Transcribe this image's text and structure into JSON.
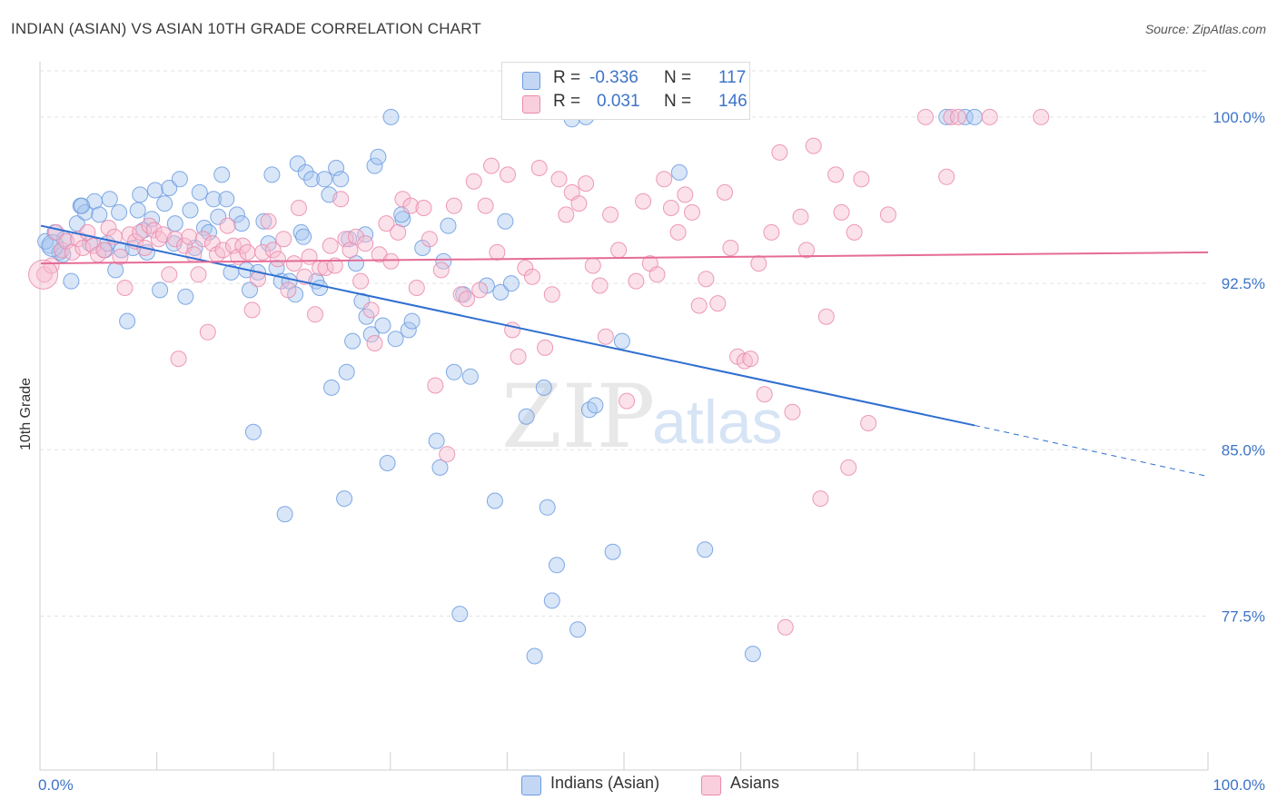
{
  "header": {
    "title": "INDIAN (ASIAN) VS ASIAN 10TH GRADE CORRELATION CHART",
    "source": "Source: ZipAtlas.com"
  },
  "stats": [
    {
      "r_label": "R =",
      "r_value": "-0.336",
      "n_label": "N =",
      "n_value": "117"
    },
    {
      "r_label": "R =",
      "r_value": "0.031",
      "n_label": "N =",
      "n_value": "146"
    }
  ],
  "legend": {
    "items": [
      "Indians (Asian)",
      "Asians"
    ]
  },
  "colors": {
    "blue_fill": "#a9c7ef",
    "blue_stroke": "#6c9be0",
    "blue_line": "#2f6fd1",
    "pink_fill": "#f6bdd0",
    "pink_stroke": "#ea8aab",
    "pink_line": "#e56b96",
    "value_text": "#3d74c8"
  },
  "chart_data": {
    "type": "scatter",
    "title": "INDIAN (ASIAN) VS ASIAN 10TH GRADE CORRELATION CHART",
    "xlabel": "",
    "ylabel": "10th Grade",
    "xlim": [
      0,
      100
    ],
    "ylim": [
      71.3,
      102.0
    ],
    "x_tick_labels": [
      {
        "v": 0,
        "label": "0.0%"
      },
      {
        "v": 100,
        "label": "100.0%"
      }
    ],
    "y_tick_labels": [
      {
        "v": 100.0,
        "label": "100.0%"
      },
      {
        "v": 92.5,
        "label": "92.5%"
      },
      {
        "v": 85.0,
        "label": "85.0%"
      },
      {
        "v": 77.5,
        "label": "77.5%"
      }
    ],
    "grid": true,
    "legend_position": "bottom-center",
    "watermark": "ZIPatlas",
    "series": [
      {
        "name": "Indians (Asian)",
        "color": "#a9c7ef",
        "trend": {
          "x": [
            0,
            80
          ],
          "y": [
            95.1,
            86.1
          ],
          "dashed_to": [
            100,
            83.8
          ]
        },
        "points": [
          [
            0.8,
            94.2
          ],
          [
            1.2,
            94.8
          ],
          [
            1.6,
            93.9
          ],
          [
            2.0,
            94.5
          ],
          [
            2.6,
            92.6
          ],
          [
            3.1,
            95.2
          ],
          [
            3.4,
            96.0
          ],
          [
            3.8,
            95.7
          ],
          [
            4.2,
            94.3
          ],
          [
            4.6,
            96.2
          ],
          [
            5.0,
            95.6
          ],
          [
            5.5,
            94.0
          ],
          [
            5.9,
            96.3
          ],
          [
            6.4,
            93.1
          ],
          [
            6.9,
            94.0
          ],
          [
            7.4,
            90.8
          ],
          [
            7.9,
            94.1
          ],
          [
            8.3,
            95.8
          ],
          [
            8.8,
            94.9
          ],
          [
            9.1,
            93.9
          ],
          [
            9.5,
            95.4
          ],
          [
            9.8,
            96.7
          ],
          [
            10.2,
            92.2
          ],
          [
            10.6,
            96.1
          ],
          [
            11.0,
            96.8
          ],
          [
            11.5,
            95.2
          ],
          [
            11.9,
            97.2
          ],
          [
            12.4,
            91.9
          ],
          [
            12.8,
            95.8
          ],
          [
            13.2,
            94.1
          ],
          [
            13.6,
            96.6
          ],
          [
            14.0,
            95.0
          ],
          [
            14.4,
            94.8
          ],
          [
            14.8,
            96.3
          ],
          [
            15.2,
            95.5
          ],
          [
            15.5,
            97.4
          ],
          [
            15.9,
            96.3
          ],
          [
            16.3,
            93.0
          ],
          [
            16.8,
            95.6
          ],
          [
            17.2,
            95.2
          ],
          [
            17.6,
            93.1
          ],
          [
            17.9,
            92.2
          ],
          [
            18.2,
            85.8
          ],
          [
            18.6,
            93.0
          ],
          [
            19.1,
            95.3
          ],
          [
            19.5,
            94.3
          ],
          [
            19.8,
            97.4
          ],
          [
            20.2,
            93.2
          ],
          [
            20.6,
            92.6
          ],
          [
            20.9,
            82.1
          ],
          [
            21.3,
            92.6
          ],
          [
            21.8,
            92.0
          ],
          [
            22.0,
            97.9
          ],
          [
            22.3,
            94.8
          ],
          [
            22.7,
            97.5
          ],
          [
            23.2,
            97.2
          ],
          [
            23.6,
            92.6
          ],
          [
            23.9,
            92.3
          ],
          [
            24.3,
            97.2
          ],
          [
            24.7,
            96.5
          ],
          [
            24.9,
            87.8
          ],
          [
            25.3,
            97.7
          ],
          [
            25.7,
            97.2
          ],
          [
            26.0,
            82.8
          ],
          [
            26.2,
            88.5
          ],
          [
            26.7,
            89.9
          ],
          [
            27.0,
            93.4
          ],
          [
            27.5,
            91.7
          ],
          [
            27.9,
            91.0
          ],
          [
            28.3,
            90.2
          ],
          [
            28.6,
            97.8
          ],
          [
            28.9,
            98.2
          ],
          [
            29.3,
            90.6
          ],
          [
            29.7,
            84.4
          ],
          [
            30.0,
            100.0
          ],
          [
            30.4,
            90.0
          ],
          [
            31.0,
            95.4
          ],
          [
            31.5,
            90.4
          ],
          [
            31.8,
            90.8
          ],
          [
            32.7,
            94.1
          ],
          [
            33.9,
            85.4
          ],
          [
            34.2,
            84.2
          ],
          [
            34.5,
            93.5
          ],
          [
            34.9,
            95.1
          ],
          [
            35.4,
            88.5
          ],
          [
            35.9,
            77.6
          ],
          [
            36.2,
            92.0
          ],
          [
            36.8,
            88.3
          ],
          [
            38.2,
            92.4
          ],
          [
            38.9,
            82.7
          ],
          [
            39.4,
            92.1
          ],
          [
            39.8,
            95.3
          ],
          [
            40.3,
            92.5
          ],
          [
            41.6,
            86.5
          ],
          [
            42.3,
            75.7
          ],
          [
            43.1,
            87.8
          ],
          [
            43.4,
            82.4
          ],
          [
            43.8,
            78.2
          ],
          [
            44.2,
            79.8
          ],
          [
            45.5,
            99.9
          ],
          [
            46.0,
            76.9
          ],
          [
            46.7,
            100.0
          ],
          [
            47.0,
            86.8
          ],
          [
            47.5,
            87.0
          ],
          [
            49.0,
            80.4
          ],
          [
            49.8,
            89.9
          ],
          [
            54.7,
            97.5
          ],
          [
            56.9,
            80.5
          ],
          [
            61.0,
            75.8
          ],
          [
            77.6,
            100.0
          ],
          [
            79.2,
            100.0
          ],
          [
            80.0,
            100.0
          ],
          [
            0.4,
            94.4
          ],
          [
            1.9,
            93.8
          ],
          [
            5.7,
            94.3
          ],
          [
            11.4,
            94.3
          ],
          [
            22.5,
            94.6
          ],
          [
            26.4,
            94.5
          ],
          [
            27.8,
            94.7
          ],
          [
            30.9,
            95.6
          ],
          [
            3.5,
            96.0
          ],
          [
            6.7,
            95.7
          ],
          [
            8.5,
            96.5
          ]
        ]
      },
      {
        "name": "Asians",
        "color": "#f6bdd0",
        "trend": {
          "x": [
            0,
            100
          ],
          "y": [
            93.4,
            93.9
          ]
        },
        "points": [
          [
            0.3,
            92.9
          ],
          [
            0.9,
            93.3
          ],
          [
            1.3,
            94.8
          ],
          [
            1.8,
            94.0
          ],
          [
            2.2,
            94.4
          ],
          [
            2.7,
            93.9
          ],
          [
            3.2,
            94.5
          ],
          [
            3.6,
            94.1
          ],
          [
            4.0,
            94.8
          ],
          [
            4.5,
            94.2
          ],
          [
            4.9,
            93.8
          ],
          [
            5.4,
            94.0
          ],
          [
            5.8,
            95.0
          ],
          [
            6.3,
            94.6
          ],
          [
            6.8,
            93.7
          ],
          [
            7.2,
            92.3
          ],
          [
            7.6,
            94.7
          ],
          [
            8.1,
            94.4
          ],
          [
            8.5,
            94.8
          ],
          [
            8.9,
            94.1
          ],
          [
            9.3,
            95.1
          ],
          [
            9.7,
            94.9
          ],
          [
            10.1,
            94.5
          ],
          [
            10.5,
            94.7
          ],
          [
            11.0,
            92.9
          ],
          [
            11.5,
            94.5
          ],
          [
            11.8,
            89.1
          ],
          [
            12.3,
            94.2
          ],
          [
            12.7,
            94.6
          ],
          [
            13.1,
            93.8
          ],
          [
            13.5,
            92.9
          ],
          [
            13.9,
            94.5
          ],
          [
            14.3,
            90.3
          ],
          [
            14.7,
            94.3
          ],
          [
            15.1,
            93.8
          ],
          [
            15.6,
            94.0
          ],
          [
            16.0,
            95.1
          ],
          [
            16.5,
            94.2
          ],
          [
            16.9,
            93.7
          ],
          [
            17.3,
            94.2
          ],
          [
            17.7,
            93.9
          ],
          [
            18.1,
            91.3
          ],
          [
            18.6,
            92.7
          ],
          [
            19.0,
            93.9
          ],
          [
            19.5,
            95.3
          ],
          [
            19.9,
            94.0
          ],
          [
            20.3,
            93.6
          ],
          [
            20.8,
            94.5
          ],
          [
            21.2,
            92.2
          ],
          [
            21.7,
            93.4
          ],
          [
            22.1,
            95.9
          ],
          [
            22.6,
            92.8
          ],
          [
            23.0,
            93.7
          ],
          [
            23.5,
            91.1
          ],
          [
            23.9,
            93.2
          ],
          [
            24.4,
            93.2
          ],
          [
            24.8,
            94.2
          ],
          [
            25.2,
            93.3
          ],
          [
            25.7,
            96.3
          ],
          [
            26.1,
            94.5
          ],
          [
            26.5,
            94.0
          ],
          [
            27.0,
            94.6
          ],
          [
            27.4,
            92.6
          ],
          [
            27.8,
            94.3
          ],
          [
            28.3,
            91.3
          ],
          [
            28.6,
            89.8
          ],
          [
            29.0,
            93.8
          ],
          [
            29.6,
            95.2
          ],
          [
            30.0,
            93.5
          ],
          [
            30.6,
            94.8
          ],
          [
            31.0,
            96.3
          ],
          [
            31.7,
            96.0
          ],
          [
            32.2,
            92.3
          ],
          [
            32.8,
            95.9
          ],
          [
            33.3,
            94.5
          ],
          [
            33.8,
            87.9
          ],
          [
            34.3,
            93.1
          ],
          [
            34.8,
            84.8
          ],
          [
            35.4,
            96.0
          ],
          [
            36.0,
            92.0
          ],
          [
            36.5,
            91.8
          ],
          [
            37.1,
            97.1
          ],
          [
            37.6,
            92.2
          ],
          [
            38.1,
            96.0
          ],
          [
            38.6,
            97.8
          ],
          [
            39.1,
            93.9
          ],
          [
            40.0,
            97.4
          ],
          [
            40.4,
            90.4
          ],
          [
            40.9,
            89.2
          ],
          [
            41.5,
            93.2
          ],
          [
            42.1,
            92.8
          ],
          [
            42.7,
            97.7
          ],
          [
            43.2,
            89.6
          ],
          [
            43.8,
            92.0
          ],
          [
            44.4,
            97.2
          ],
          [
            45.0,
            95.6
          ],
          [
            45.5,
            96.6
          ],
          [
            46.1,
            96.1
          ],
          [
            46.7,
            97.0
          ],
          [
            47.3,
            93.3
          ],
          [
            47.9,
            92.4
          ],
          [
            48.4,
            90.1
          ],
          [
            48.8,
            95.6
          ],
          [
            49.5,
            94.0
          ],
          [
            50.2,
            87.2
          ],
          [
            51.0,
            92.6
          ],
          [
            51.6,
            96.2
          ],
          [
            52.2,
            93.4
          ],
          [
            52.8,
            92.9
          ],
          [
            53.4,
            97.2
          ],
          [
            54.0,
            95.9
          ],
          [
            54.6,
            94.8
          ],
          [
            55.2,
            96.5
          ],
          [
            55.8,
            95.7
          ],
          [
            56.4,
            91.5
          ],
          [
            57.0,
            92.7
          ],
          [
            58.0,
            91.6
          ],
          [
            58.6,
            96.6
          ],
          [
            59.1,
            94.1
          ],
          [
            59.7,
            89.2
          ],
          [
            60.3,
            89.0
          ],
          [
            60.8,
            89.1
          ],
          [
            61.5,
            93.4
          ],
          [
            62.0,
            87.5
          ],
          [
            62.6,
            94.8
          ],
          [
            63.3,
            98.4
          ],
          [
            63.8,
            77.0
          ],
          [
            64.4,
            86.7
          ],
          [
            65.1,
            95.5
          ],
          [
            65.6,
            94.0
          ],
          [
            66.2,
            98.7
          ],
          [
            66.8,
            82.8
          ],
          [
            67.3,
            91.0
          ],
          [
            68.1,
            97.4
          ],
          [
            68.6,
            95.7
          ],
          [
            69.2,
            84.2
          ],
          [
            69.7,
            94.8
          ],
          [
            70.3,
            97.2
          ],
          [
            70.9,
            86.2
          ],
          [
            72.6,
            95.6
          ],
          [
            75.8,
            100.0
          ],
          [
            77.6,
            97.3
          ],
          [
            78.0,
            100.0
          ],
          [
            78.6,
            100.0
          ],
          [
            81.3,
            100.0
          ],
          [
            85.7,
            100.0
          ]
        ]
      }
    ]
  }
}
